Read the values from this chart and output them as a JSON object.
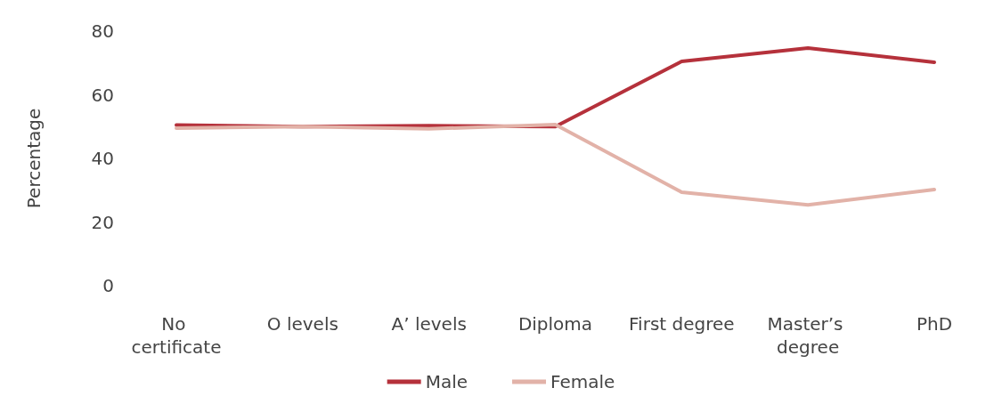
{
  "chart_data": {
    "type": "line",
    "ylabel": "Percentage",
    "categories": [
      "No certificate",
      "O levels",
      "A’ levels",
      "Diploma",
      "First degree",
      "Master’s degree",
      "PhD"
    ],
    "series": [
      {
        "name": "Male",
        "color": "#b5313b",
        "values": [
          50.5,
          50,
          50.3,
          50,
          70.5,
          74.7,
          70.2
        ]
      },
      {
        "name": "Female",
        "color": "#e2b2a8",
        "values": [
          49.5,
          50,
          49.3,
          50.6,
          29.4,
          25.4,
          30.2
        ]
      }
    ],
    "ylim": [
      0,
      80
    ],
    "yticks": [
      0,
      20,
      40,
      60,
      80
    ],
    "grid": false,
    "legend": "bottom",
    "marker": "none",
    "line_style": "solid"
  }
}
